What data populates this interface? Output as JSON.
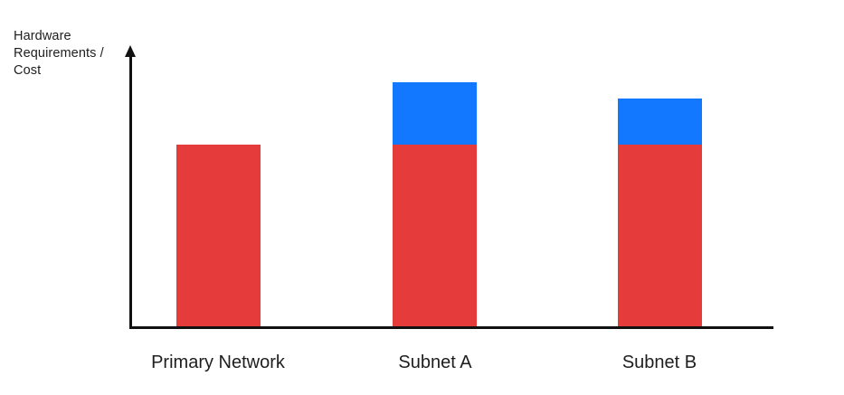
{
  "chart_data": {
    "type": "bar",
    "stacked": true,
    "title": "",
    "xlabel": "",
    "ylabel": "Hardware Requirements / Cost",
    "categories": [
      "Primary Network",
      "Subnet A",
      "Subnet B"
    ],
    "series": [
      {
        "name": "red-base-segment",
        "color": "#E63B3B",
        "values": [
          100,
          100,
          100
        ]
      },
      {
        "name": "blue-top-segment",
        "color": "#1278FF",
        "values": [
          0,
          34,
          25
        ]
      }
    ],
    "units": "relative (no numeric scale shown on axis)",
    "ylim": [
      0,
      150
    ],
    "legend": "none",
    "grid": false,
    "axis_style": {
      "axis_color": "#111111",
      "label_color": "#1E1E1E",
      "y_axis_arrow": true,
      "ticks_visible": false
    }
  }
}
